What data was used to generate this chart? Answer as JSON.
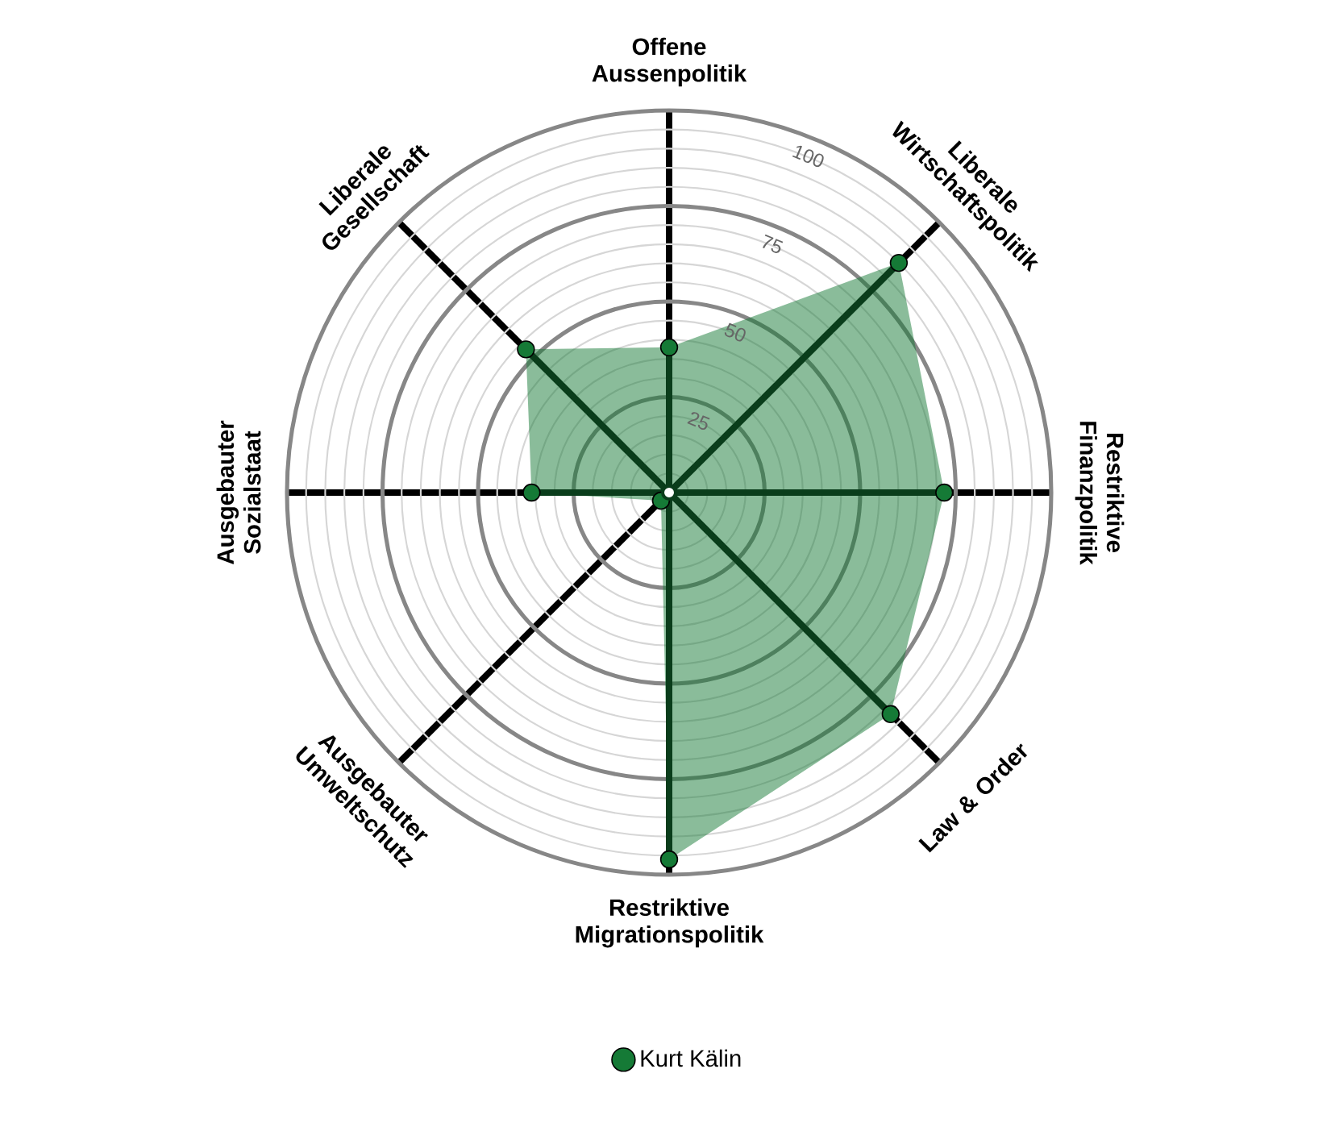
{
  "chart_data": {
    "type": "radar",
    "categories": [
      "Offene Aussenpolitik",
      "Liberale Wirtschaftspolitik",
      "Restriktive Finanzpolitik",
      "Law & Order",
      "Restriktive Migrationspolitik",
      "Ausgebauter Umweltschutz",
      "Ausgebauter Sozialstaat",
      "Liberale Gesellschaft"
    ],
    "series": [
      {
        "name": "Kurt Kälin",
        "color": "#157a36",
        "values": [
          38,
          85,
          72,
          82,
          96,
          3,
          36,
          53
        ]
      }
    ],
    "ylim": [
      0,
      100
    ],
    "yticks": [
      25,
      50,
      75,
      100
    ],
    "grid": true,
    "legend": "bottom",
    "marker": "circle"
  }
}
